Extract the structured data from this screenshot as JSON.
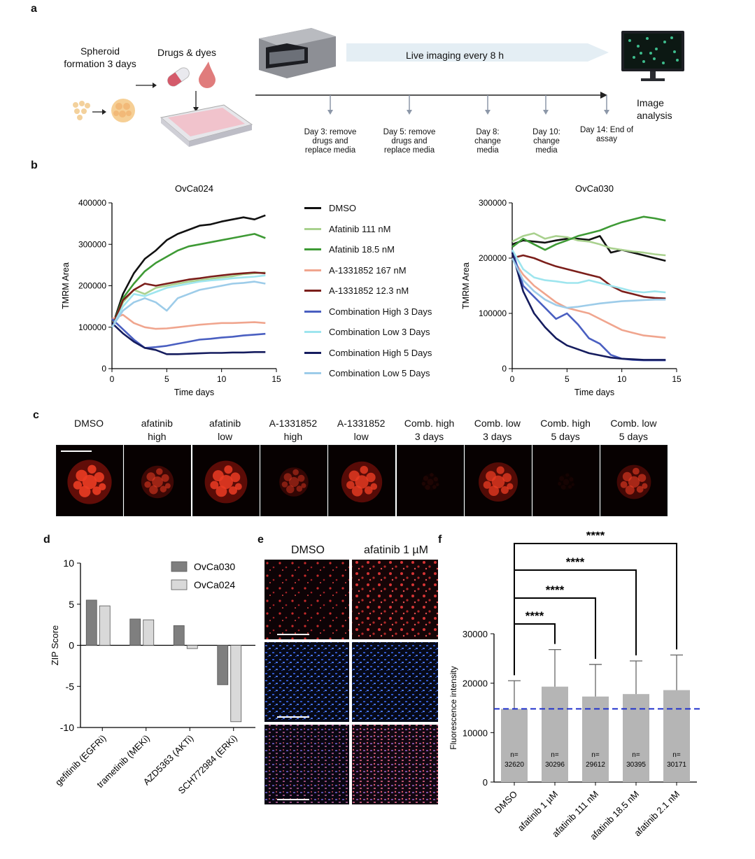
{
  "panel_a": {
    "label": "a",
    "spheroid_text": "Spheroid formation 3 days",
    "drugs_text": "Drugs & dyes",
    "imaging_text": "Live imaging every 8 h",
    "analysis_text": "Image analysis",
    "steps": [
      "Day 3: remove drugs and replace media",
      "Day 5: remove drugs and replace media",
      "Day 8: change media",
      "Day 10: change media",
      "Day 14: End of assay"
    ]
  },
  "panel_b": {
    "label": "b",
    "legend": [
      {
        "name": "DMSO",
        "color": "#111111"
      },
      {
        "name": "Afatinib 111 nM",
        "color": "#a9d18e"
      },
      {
        "name": "Afatinib 18.5 nM",
        "color": "#3e9a35"
      },
      {
        "name": "A-1331852 167 nM",
        "color": "#f0a58e"
      },
      {
        "name": "A-1331852 12.3 nM",
        "color": "#7b1e1a"
      },
      {
        "name": "Combination High 3 Days",
        "color": "#4a5fc1"
      },
      {
        "name": "Combination Low 3 Days",
        "color": "#9ee5ee"
      },
      {
        "name": "Combination High 5 Days",
        "color": "#151c5e"
      },
      {
        "name": "Combination Low 5 Days",
        "color": "#9dcce9"
      }
    ]
  },
  "panel_c": {
    "label": "c",
    "conditions": [
      {
        "line1": "DMSO",
        "line2": "",
        "brightness": 0.9
      },
      {
        "line1": "afatinib",
        "line2": "high",
        "brightness": 0.55
      },
      {
        "line1": "afatinib",
        "line2": "low",
        "brightness": 0.85
      },
      {
        "line1": "A-1331852",
        "line2": "high",
        "brightness": 0.45
      },
      {
        "line1": "A-1331852",
        "line2": "low",
        "brightness": 0.8
      },
      {
        "line1": "Comb. high",
        "line2": "3 days",
        "brightness": 0.08
      },
      {
        "line1": "Comb. low",
        "line2": "3 days",
        "brightness": 0.75
      },
      {
        "line1": "Comb. high",
        "line2": "5 days",
        "brightness": 0.05
      },
      {
        "line1": "Comb. low",
        "line2": "5 days",
        "brightness": 0.6
      }
    ]
  },
  "panel_d": {
    "label": "d"
  },
  "panel_e": {
    "label": "e",
    "columns": [
      "DMSO",
      "afatinib 1 µM"
    ]
  },
  "panel_f": {
    "label": "f"
  },
  "chart_data": [
    {
      "type": "line",
      "title": "OvCa024",
      "xlabel": "Time days",
      "ylabel": "TMRM Area",
      "xlim": [
        0,
        15
      ],
      "ylim": [
        0,
        400000
      ],
      "x_ticks": [
        0,
        5,
        10,
        15
      ],
      "y_ticks": [
        0,
        100000,
        200000,
        300000,
        400000
      ],
      "x": [
        0,
        1,
        2,
        3,
        4,
        5,
        6,
        7,
        8,
        9,
        10,
        11,
        12,
        13,
        14
      ],
      "series": [
        {
          "name": "DMSO",
          "values": [
            100000,
            180000,
            230000,
            265000,
            285000,
            310000,
            325000,
            335000,
            345000,
            348000,
            355000,
            360000,
            365000,
            360000,
            370000
          ]
        },
        {
          "name": "Afatinib 111 nM",
          "values": [
            100000,
            160000,
            190000,
            180000,
            195000,
            200000,
            205000,
            210000,
            213000,
            217000,
            220000,
            223000,
            228000,
            230000,
            232000
          ]
        },
        {
          "name": "Afatinib 18.5 nM",
          "values": [
            100000,
            170000,
            205000,
            235000,
            255000,
            270000,
            285000,
            295000,
            300000,
            305000,
            310000,
            315000,
            320000,
            325000,
            315000
          ]
        },
        {
          "name": "A-1331852 167 nM",
          "values": [
            120000,
            130000,
            110000,
            100000,
            96000,
            97000,
            100000,
            103000,
            106000,
            108000,
            110000,
            110000,
            111000,
            112000,
            110000
          ]
        },
        {
          "name": "A-1331852 12.3 nM",
          "values": [
            100000,
            165000,
            190000,
            205000,
            200000,
            205000,
            210000,
            215000,
            218000,
            222000,
            225000,
            228000,
            230000,
            232000,
            230000
          ]
        },
        {
          "name": "Combination High 3 Days",
          "values": [
            120000,
            95000,
            70000,
            50000,
            52000,
            55000,
            60000,
            65000,
            70000,
            72000,
            75000,
            77000,
            80000,
            82000,
            84000
          ]
        },
        {
          "name": "Combination Low 3 Days",
          "values": [
            100000,
            150000,
            180000,
            175000,
            185000,
            195000,
            200000,
            205000,
            210000,
            213000,
            215000,
            218000,
            220000,
            222000,
            225000
          ]
        },
        {
          "name": "Combination High 5 Days",
          "values": [
            110000,
            85000,
            65000,
            50000,
            45000,
            35000,
            35000,
            36000,
            37000,
            38000,
            38000,
            39000,
            39000,
            40000,
            40000
          ]
        },
        {
          "name": "Combination Low 5 Days",
          "values": [
            100000,
            140000,
            160000,
            170000,
            160000,
            140000,
            170000,
            180000,
            190000,
            195000,
            200000,
            205000,
            207000,
            210000,
            205000
          ]
        }
      ]
    },
    {
      "type": "line",
      "title": "OvCa030",
      "xlabel": "Time days",
      "ylabel": "TMRM Area",
      "xlim": [
        0,
        15
      ],
      "ylim": [
        0,
        300000
      ],
      "x_ticks": [
        0,
        5,
        10,
        15
      ],
      "y_ticks": [
        0,
        100000,
        200000,
        300000
      ],
      "x": [
        0,
        1,
        2,
        3,
        4,
        5,
        6,
        7,
        8,
        9,
        10,
        11,
        12,
        13,
        14
      ],
      "series": [
        {
          "name": "DMSO",
          "values": [
            225000,
            232000,
            230000,
            228000,
            232000,
            235000,
            235000,
            233000,
            240000,
            210000,
            215000,
            210000,
            205000,
            200000,
            195000
          ]
        },
        {
          "name": "Afatinib 111 nM",
          "values": [
            230000,
            240000,
            245000,
            235000,
            240000,
            238000,
            232000,
            230000,
            225000,
            218000,
            215000,
            212000,
            210000,
            207000,
            205000
          ]
        },
        {
          "name": "Afatinib 18.5 nM",
          "values": [
            220000,
            235000,
            225000,
            215000,
            225000,
            232000,
            240000,
            245000,
            250000,
            258000,
            265000,
            270000,
            275000,
            272000,
            268000
          ]
        },
        {
          "name": "A-1331852 167 nM",
          "values": [
            200000,
            170000,
            150000,
            135000,
            120000,
            110000,
            105000,
            100000,
            90000,
            80000,
            70000,
            65000,
            60000,
            58000,
            56000
          ]
        },
        {
          "name": "A-1331852 12.3 nM",
          "values": [
            200000,
            205000,
            200000,
            192000,
            185000,
            180000,
            175000,
            170000,
            165000,
            150000,
            140000,
            135000,
            130000,
            128000,
            127000
          ]
        },
        {
          "name": "Combination High 3 Days",
          "values": [
            215000,
            150000,
            130000,
            110000,
            90000,
            100000,
            80000,
            55000,
            45000,
            25000,
            18000,
            16000,
            15000,
            15000,
            15000
          ]
        },
        {
          "name": "Combination Low 3 Days",
          "values": [
            215000,
            180000,
            165000,
            160000,
            158000,
            155000,
            155000,
            160000,
            155000,
            150000,
            145000,
            140000,
            138000,
            140000,
            138000
          ]
        },
        {
          "name": "Combination High 5 Days",
          "values": [
            210000,
            140000,
            100000,
            75000,
            55000,
            42000,
            35000,
            28000,
            24000,
            20000,
            18000,
            17000,
            16000,
            16000,
            16000
          ]
        },
        {
          "name": "Combination Low 5 Days",
          "values": [
            200000,
            160000,
            140000,
            125000,
            115000,
            110000,
            112000,
            115000,
            118000,
            120000,
            122000,
            123000,
            124000,
            125000,
            125000
          ]
        }
      ]
    },
    {
      "type": "bar",
      "title": "",
      "xlabel": "",
      "ylabel": "ZIP Score",
      "ylim": [
        -10,
        10
      ],
      "y_ticks": [
        -10,
        -5,
        0,
        5,
        10
      ],
      "categories": [
        "gefitinib (EGFRi)",
        "trametinib (MEKi)",
        "AZD5363 (AKTi)",
        "SCH772984 (ERKi)"
      ],
      "series": [
        {
          "name": "OvCa030",
          "color": "#7f7f7f",
          "values": [
            5.5,
            3.2,
            2.4,
            -4.8
          ]
        },
        {
          "name": "OvCa024",
          "color": "#d9d9d9",
          "values": [
            4.8,
            3.1,
            -0.4,
            -9.3
          ]
        }
      ]
    },
    {
      "type": "bar",
      "title": "",
      "xlabel": "",
      "ylabel": "Fluorescence intensity",
      "ylim": [
        0,
        30000
      ],
      "y_ticks": [
        0,
        10000,
        20000,
        30000
      ],
      "categories": [
        "DMSO",
        "afatinib 1 µM",
        "afatinib 111 nM",
        "afatinib 18.5 nM",
        "afatinib 2.1 nM"
      ],
      "values": [
        14800,
        19300,
        17300,
        17800,
        18600
      ],
      "errors": [
        5700,
        7500,
        6500,
        6700,
        7100
      ],
      "n_labels": [
        "n=",
        "n=",
        "n=",
        "n=",
        "n="
      ],
      "n_values": [
        "32620",
        "30296",
        "29612",
        "30395",
        "30171"
      ],
      "reference_line": 14800,
      "significance": [
        "****",
        "****",
        "****",
        "****"
      ]
    }
  ]
}
